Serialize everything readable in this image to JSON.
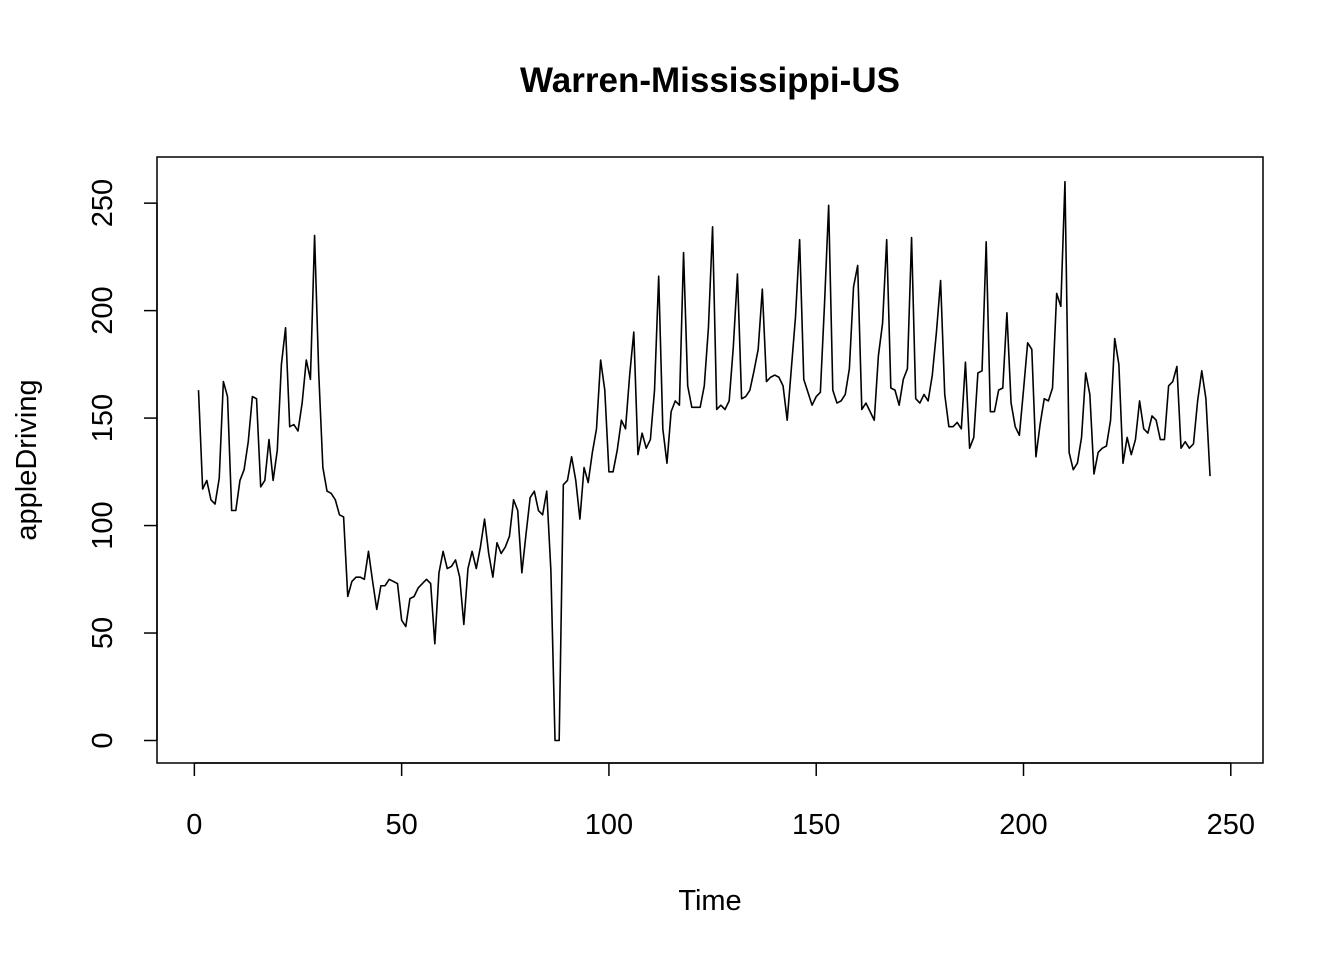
{
  "chart_data": {
    "type": "line",
    "title": "Warren-Mississippi-US",
    "xlabel": "Time",
    "ylabel": "appleDriving",
    "xlim": [
      1,
      248
    ],
    "ylim": [
      0,
      261
    ],
    "x_ticks": [
      0,
      50,
      100,
      150,
      200,
      250
    ],
    "y_ticks": [
      0,
      50,
      100,
      150,
      200,
      250
    ],
    "x_start": 1,
    "grid": false,
    "legend": "none",
    "line_color": "#000000",
    "series": [
      {
        "name": "appleDriving",
        "values": [
          163,
          117,
          121,
          112,
          110,
          122,
          167,
          160,
          107,
          107,
          121,
          126,
          139,
          160,
          159,
          118,
          121,
          140,
          121,
          135,
          175,
          192,
          146,
          147,
          144,
          157,
          177,
          168,
          235,
          171,
          127,
          116,
          115,
          112,
          105,
          104,
          67,
          74,
          76,
          76,
          75,
          88,
          74,
          61,
          72,
          72,
          75,
          74,
          73,
          56,
          53,
          66,
          67,
          71,
          73,
          75,
          73,
          45,
          78,
          88,
          80,
          81,
          84,
          76,
          54,
          80,
          88,
          80,
          90,
          103,
          87,
          76,
          92,
          87,
          90,
          95,
          112,
          107,
          78,
          96,
          113,
          116,
          107,
          105,
          116,
          79,
          0,
          0,
          119,
          121,
          132,
          121,
          103,
          127,
          120,
          134,
          145,
          177,
          163,
          125,
          125,
          135,
          149,
          145,
          170,
          190,
          133,
          143,
          136,
          140,
          163,
          216,
          145,
          129,
          153,
          158,
          156,
          227,
          165,
          155,
          155,
          155,
          165,
          192,
          239,
          154,
          156,
          154,
          158,
          183,
          217,
          159,
          160,
          163,
          172,
          182,
          210,
          167,
          169,
          170,
          169,
          165,
          149,
          173,
          197,
          233,
          168,
          162,
          156,
          160,
          162,
          203,
          249,
          163,
          157,
          158,
          161,
          173,
          211,
          221,
          154,
          157,
          153,
          149,
          179,
          194,
          233,
          164,
          163,
          156,
          168,
          173,
          234,
          159,
          157,
          161,
          158,
          170,
          190,
          214,
          161,
          146,
          146,
          148,
          145,
          176,
          136,
          141,
          171,
          172,
          232,
          153,
          153,
          163,
          164,
          199,
          157,
          146,
          142,
          163,
          185,
          182,
          132,
          147,
          159,
          158,
          164,
          208,
          202,
          260,
          134,
          126,
          129,
          141,
          171,
          161,
          124,
          134,
          136,
          137,
          149,
          187,
          175,
          129,
          141,
          133,
          140,
          158,
          145,
          143,
          151,
          149,
          140,
          140,
          165,
          167,
          174,
          136,
          139,
          136,
          138,
          158,
          172,
          159,
          123
        ]
      }
    ]
  }
}
